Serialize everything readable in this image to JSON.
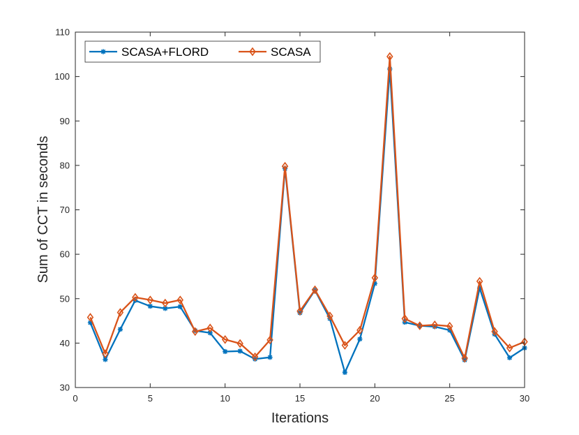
{
  "chart_data": {
    "type": "line",
    "title": "",
    "xlabel": "Iterations",
    "ylabel": "Sum of CCT in seconds",
    "xlim": [
      0,
      30
    ],
    "ylim": [
      30,
      110
    ],
    "xticks": [
      0,
      5,
      10,
      15,
      20,
      25,
      30
    ],
    "yticks": [
      30,
      40,
      50,
      60,
      70,
      80,
      90,
      100,
      110
    ],
    "grid": false,
    "legend_position": "top-left",
    "x": [
      1,
      2,
      3,
      4,
      5,
      6,
      7,
      8,
      9,
      10,
      11,
      12,
      13,
      14,
      15,
      16,
      17,
      18,
      19,
      20,
      21,
      22,
      23,
      24,
      25,
      26,
      27,
      28,
      29,
      30
    ],
    "series": [
      {
        "name": "SCASA+FLORD",
        "color": "#0072BD",
        "marker": "asterisk",
        "values": [
          44.6,
          36.3,
          43.1,
          49.6,
          48.3,
          47.8,
          48.2,
          42.8,
          42.3,
          38.1,
          38.2,
          36.4,
          36.8,
          79.3,
          46.8,
          51.9,
          45.5,
          33.4,
          40.9,
          53.4,
          101.7,
          44.7,
          43.9,
          43.7,
          42.9,
          36.2,
          52.4,
          42.0,
          36.7,
          38.9
        ]
      },
      {
        "name": "SCASA",
        "color": "#D95319",
        "marker": "diamond",
        "values": [
          45.8,
          37.6,
          46.9,
          50.3,
          49.7,
          49.0,
          49.7,
          42.6,
          43.4,
          40.8,
          39.9,
          36.9,
          40.7,
          79.8,
          47.2,
          52.0,
          46.1,
          39.5,
          42.9,
          54.7,
          104.5,
          45.5,
          43.9,
          44.1,
          43.8,
          36.6,
          53.9,
          42.6,
          38.9,
          40.3
        ]
      }
    ]
  }
}
